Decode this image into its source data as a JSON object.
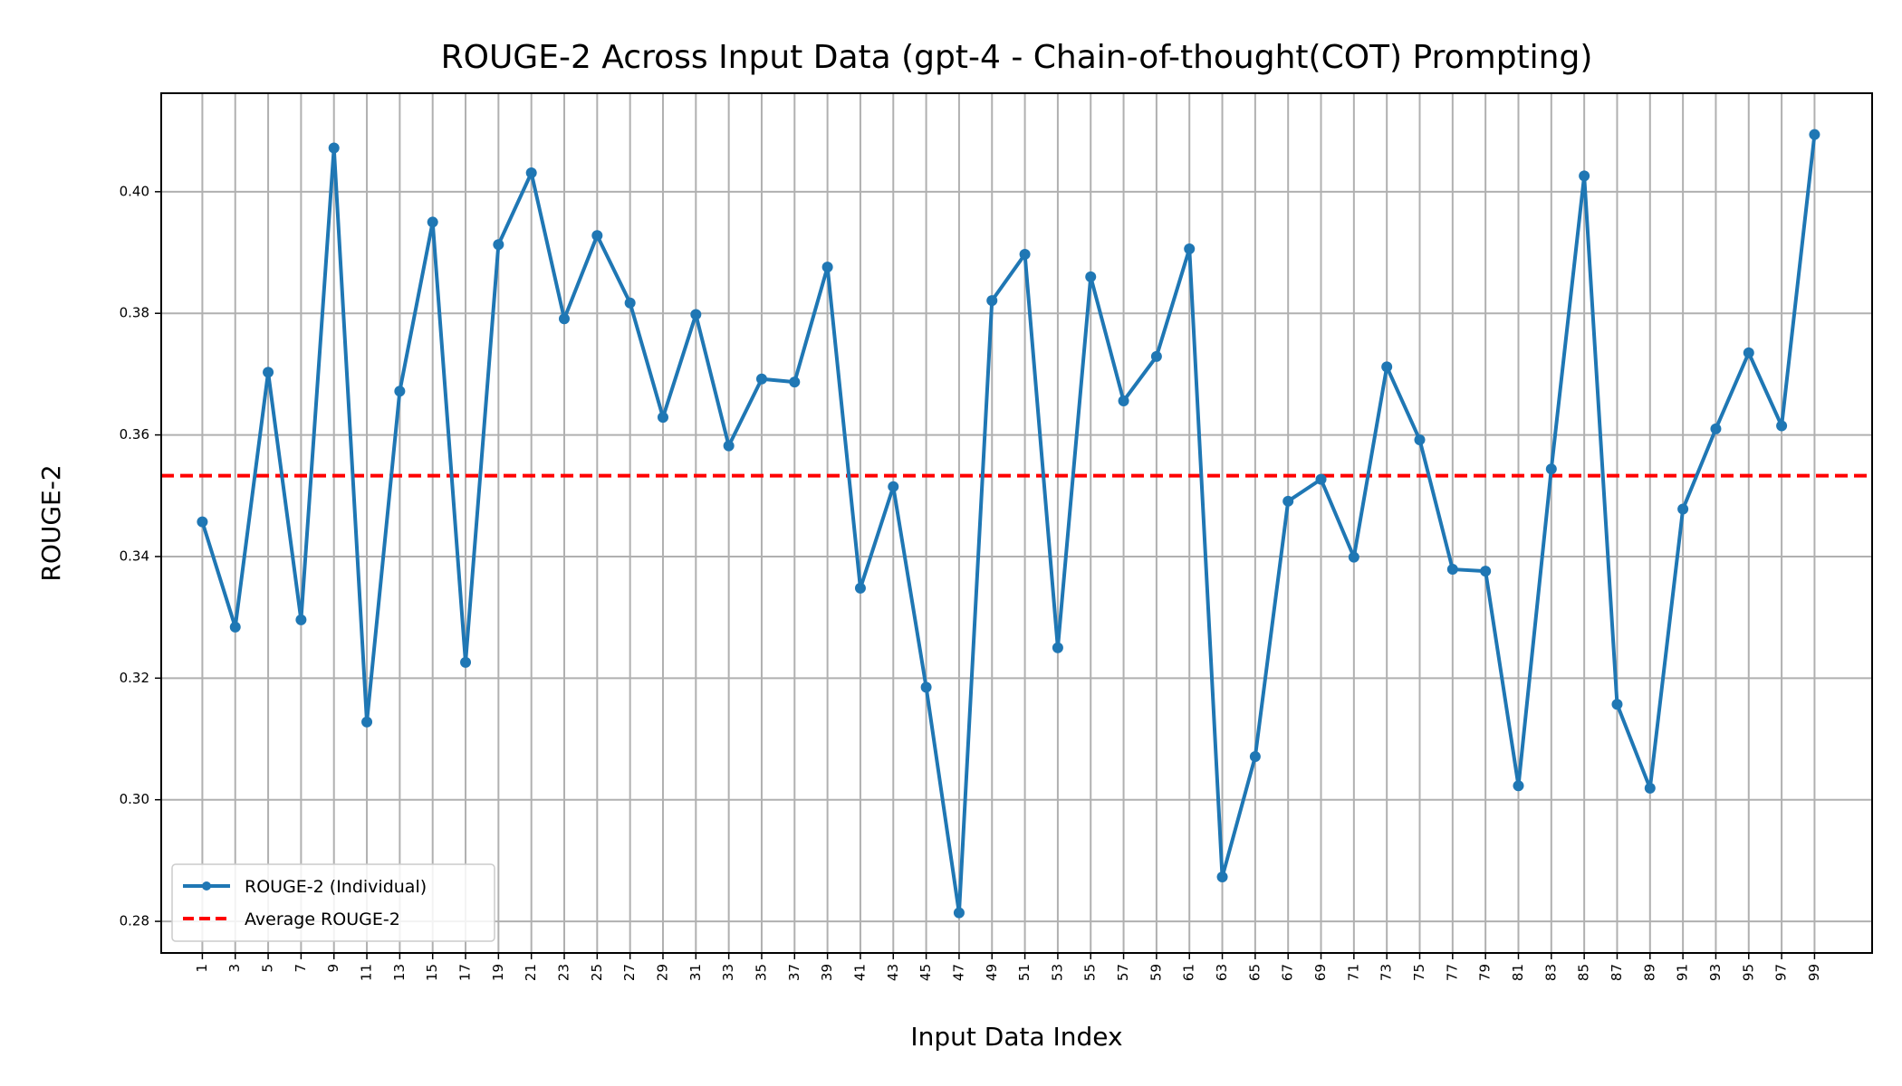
{
  "chart_data": {
    "type": "line",
    "title": "ROUGE-2 Across Input Data (gpt-4 - Chain-of-thought(COT) Prompting)",
    "xlabel": "Input Data Index",
    "ylabel": "ROUGE-2",
    "xlim": [
      -1.5,
      102.5
    ],
    "ylim": [
      0.2748,
      0.4162
    ],
    "xticks": [
      1,
      3,
      5,
      7,
      9,
      11,
      13,
      15,
      17,
      19,
      21,
      23,
      25,
      27,
      29,
      31,
      33,
      35,
      37,
      39,
      41,
      43,
      45,
      47,
      49,
      51,
      53,
      55,
      57,
      59,
      61,
      63,
      65,
      67,
      69,
      71,
      73,
      75,
      77,
      79,
      81,
      83,
      85,
      87,
      89,
      91,
      93,
      95,
      97,
      99
    ],
    "yticks": [
      0.28,
      0.3,
      0.32,
      0.34,
      0.36,
      0.38,
      0.4
    ],
    "ytick_labels": [
      "0.28",
      "0.30",
      "0.32",
      "0.34",
      "0.36",
      "0.38",
      "0.40"
    ],
    "grid": true,
    "legend_position": "lower-left",
    "series": [
      {
        "name": "ROUGE-2 (Individual)",
        "color": "#1f77b4",
        "style": "solid-with-markers",
        "x": [
          1,
          3,
          5,
          7,
          9,
          11,
          13,
          15,
          17,
          19,
          21,
          23,
          25,
          27,
          29,
          31,
          33,
          35,
          37,
          39,
          41,
          43,
          45,
          47,
          49,
          51,
          53,
          55,
          57,
          59,
          61,
          63,
          65,
          67,
          69,
          71,
          73,
          75,
          77,
          79,
          81,
          83,
          85,
          87,
          89,
          91,
          93,
          95,
          97,
          99
        ],
        "y": [
          0.3457,
          0.3284,
          0.3703,
          0.3296,
          0.4072,
          0.3128,
          0.3672,
          0.395,
          0.3226,
          0.3913,
          0.4031,
          0.3791,
          0.3928,
          0.3817,
          0.3629,
          0.3798,
          0.3582,
          0.3692,
          0.3687,
          0.3876,
          0.3348,
          0.3515,
          0.3185,
          0.2814,
          0.3821,
          0.3897,
          0.325,
          0.386,
          0.3656,
          0.3729,
          0.3906,
          0.2873,
          0.3071,
          0.3491,
          0.3527,
          0.3399,
          0.3712,
          0.3592,
          0.3379,
          0.3376,
          0.3023,
          0.3544,
          0.4026,
          0.3157,
          0.3019,
          0.3478,
          0.361,
          0.3735,
          0.3615,
          0.4094
        ]
      },
      {
        "name": "Average ROUGE-2",
        "color": "#ff0000",
        "style": "dashed",
        "value": 0.3533
      }
    ]
  }
}
